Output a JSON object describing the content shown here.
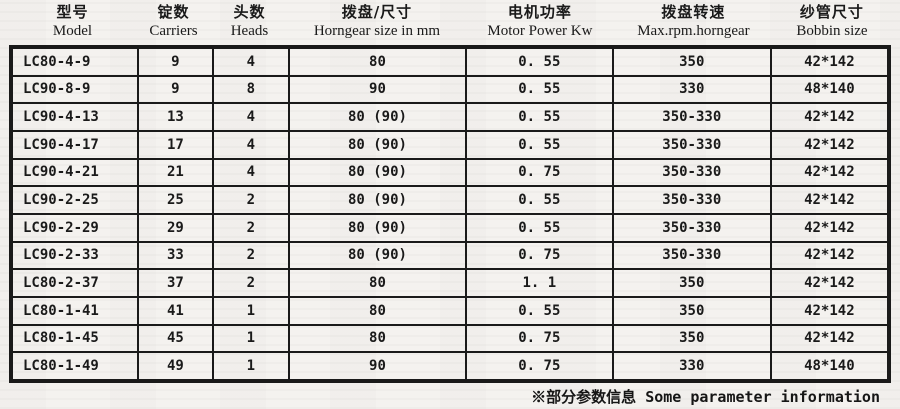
{
  "page": {
    "background": "#f4f2ef",
    "text_color": "#1a1a1a",
    "border_color": "#1a1a1a"
  },
  "table": {
    "columns": [
      {
        "key": "model",
        "zh": "型号",
        "en": "Model"
      },
      {
        "key": "carriers",
        "zh": "锭数",
        "en": "Carriers"
      },
      {
        "key": "heads",
        "zh": "头数",
        "en": "Heads"
      },
      {
        "key": "horngear_size",
        "zh": "拨盘/尺寸",
        "en": "Horngear size in mm"
      },
      {
        "key": "motor_power",
        "zh": "电机功率",
        "en": "Motor Power Kw"
      },
      {
        "key": "max_rpm",
        "zh": "拨盘转速",
        "en": "Max.rpm.horngear"
      },
      {
        "key": "bobbin_size",
        "zh": "纱管尺寸",
        "en": "Bobbin size"
      }
    ],
    "rows": [
      [
        "LC80-4-9",
        "9",
        "4",
        "80",
        "0. 55",
        "350",
        "42*142"
      ],
      [
        "LC90-8-9",
        "9",
        "8",
        "90",
        "0. 55",
        "330",
        "48*140"
      ],
      [
        "LC90-4-13",
        "13",
        "4",
        "80 (90)",
        "0. 55",
        "350-330",
        "42*142"
      ],
      [
        "LC90-4-17",
        "17",
        "4",
        "80 (90)",
        "0. 55",
        "350-330",
        "42*142"
      ],
      [
        "LC90-4-21",
        "21",
        "4",
        "80 (90)",
        "0. 75",
        "350-330",
        "42*142"
      ],
      [
        "LC90-2-25",
        "25",
        "2",
        "80 (90)",
        "0. 55",
        "350-330",
        "42*142"
      ],
      [
        "LC90-2-29",
        "29",
        "2",
        "80 (90)",
        "0. 55",
        "350-330",
        "42*142"
      ],
      [
        "LC90-2-33",
        "33",
        "2",
        "80 (90)",
        "0. 75",
        "350-330",
        "42*142"
      ],
      [
        "LC80-2-37",
        "37",
        "2",
        "80",
        "1. 1",
        "350",
        "42*142"
      ],
      [
        "LC80-1-41",
        "41",
        "1",
        "80",
        "0. 55",
        "350",
        "42*142"
      ],
      [
        "LC80-1-45",
        "45",
        "1",
        "80",
        "0. 75",
        "350",
        "42*142"
      ],
      [
        "LC80-1-49",
        "49",
        "1",
        "90",
        "0. 75",
        "330",
        "48*140"
      ]
    ]
  },
  "footer": {
    "note": "※部分参数信息 Some parameter information"
  }
}
